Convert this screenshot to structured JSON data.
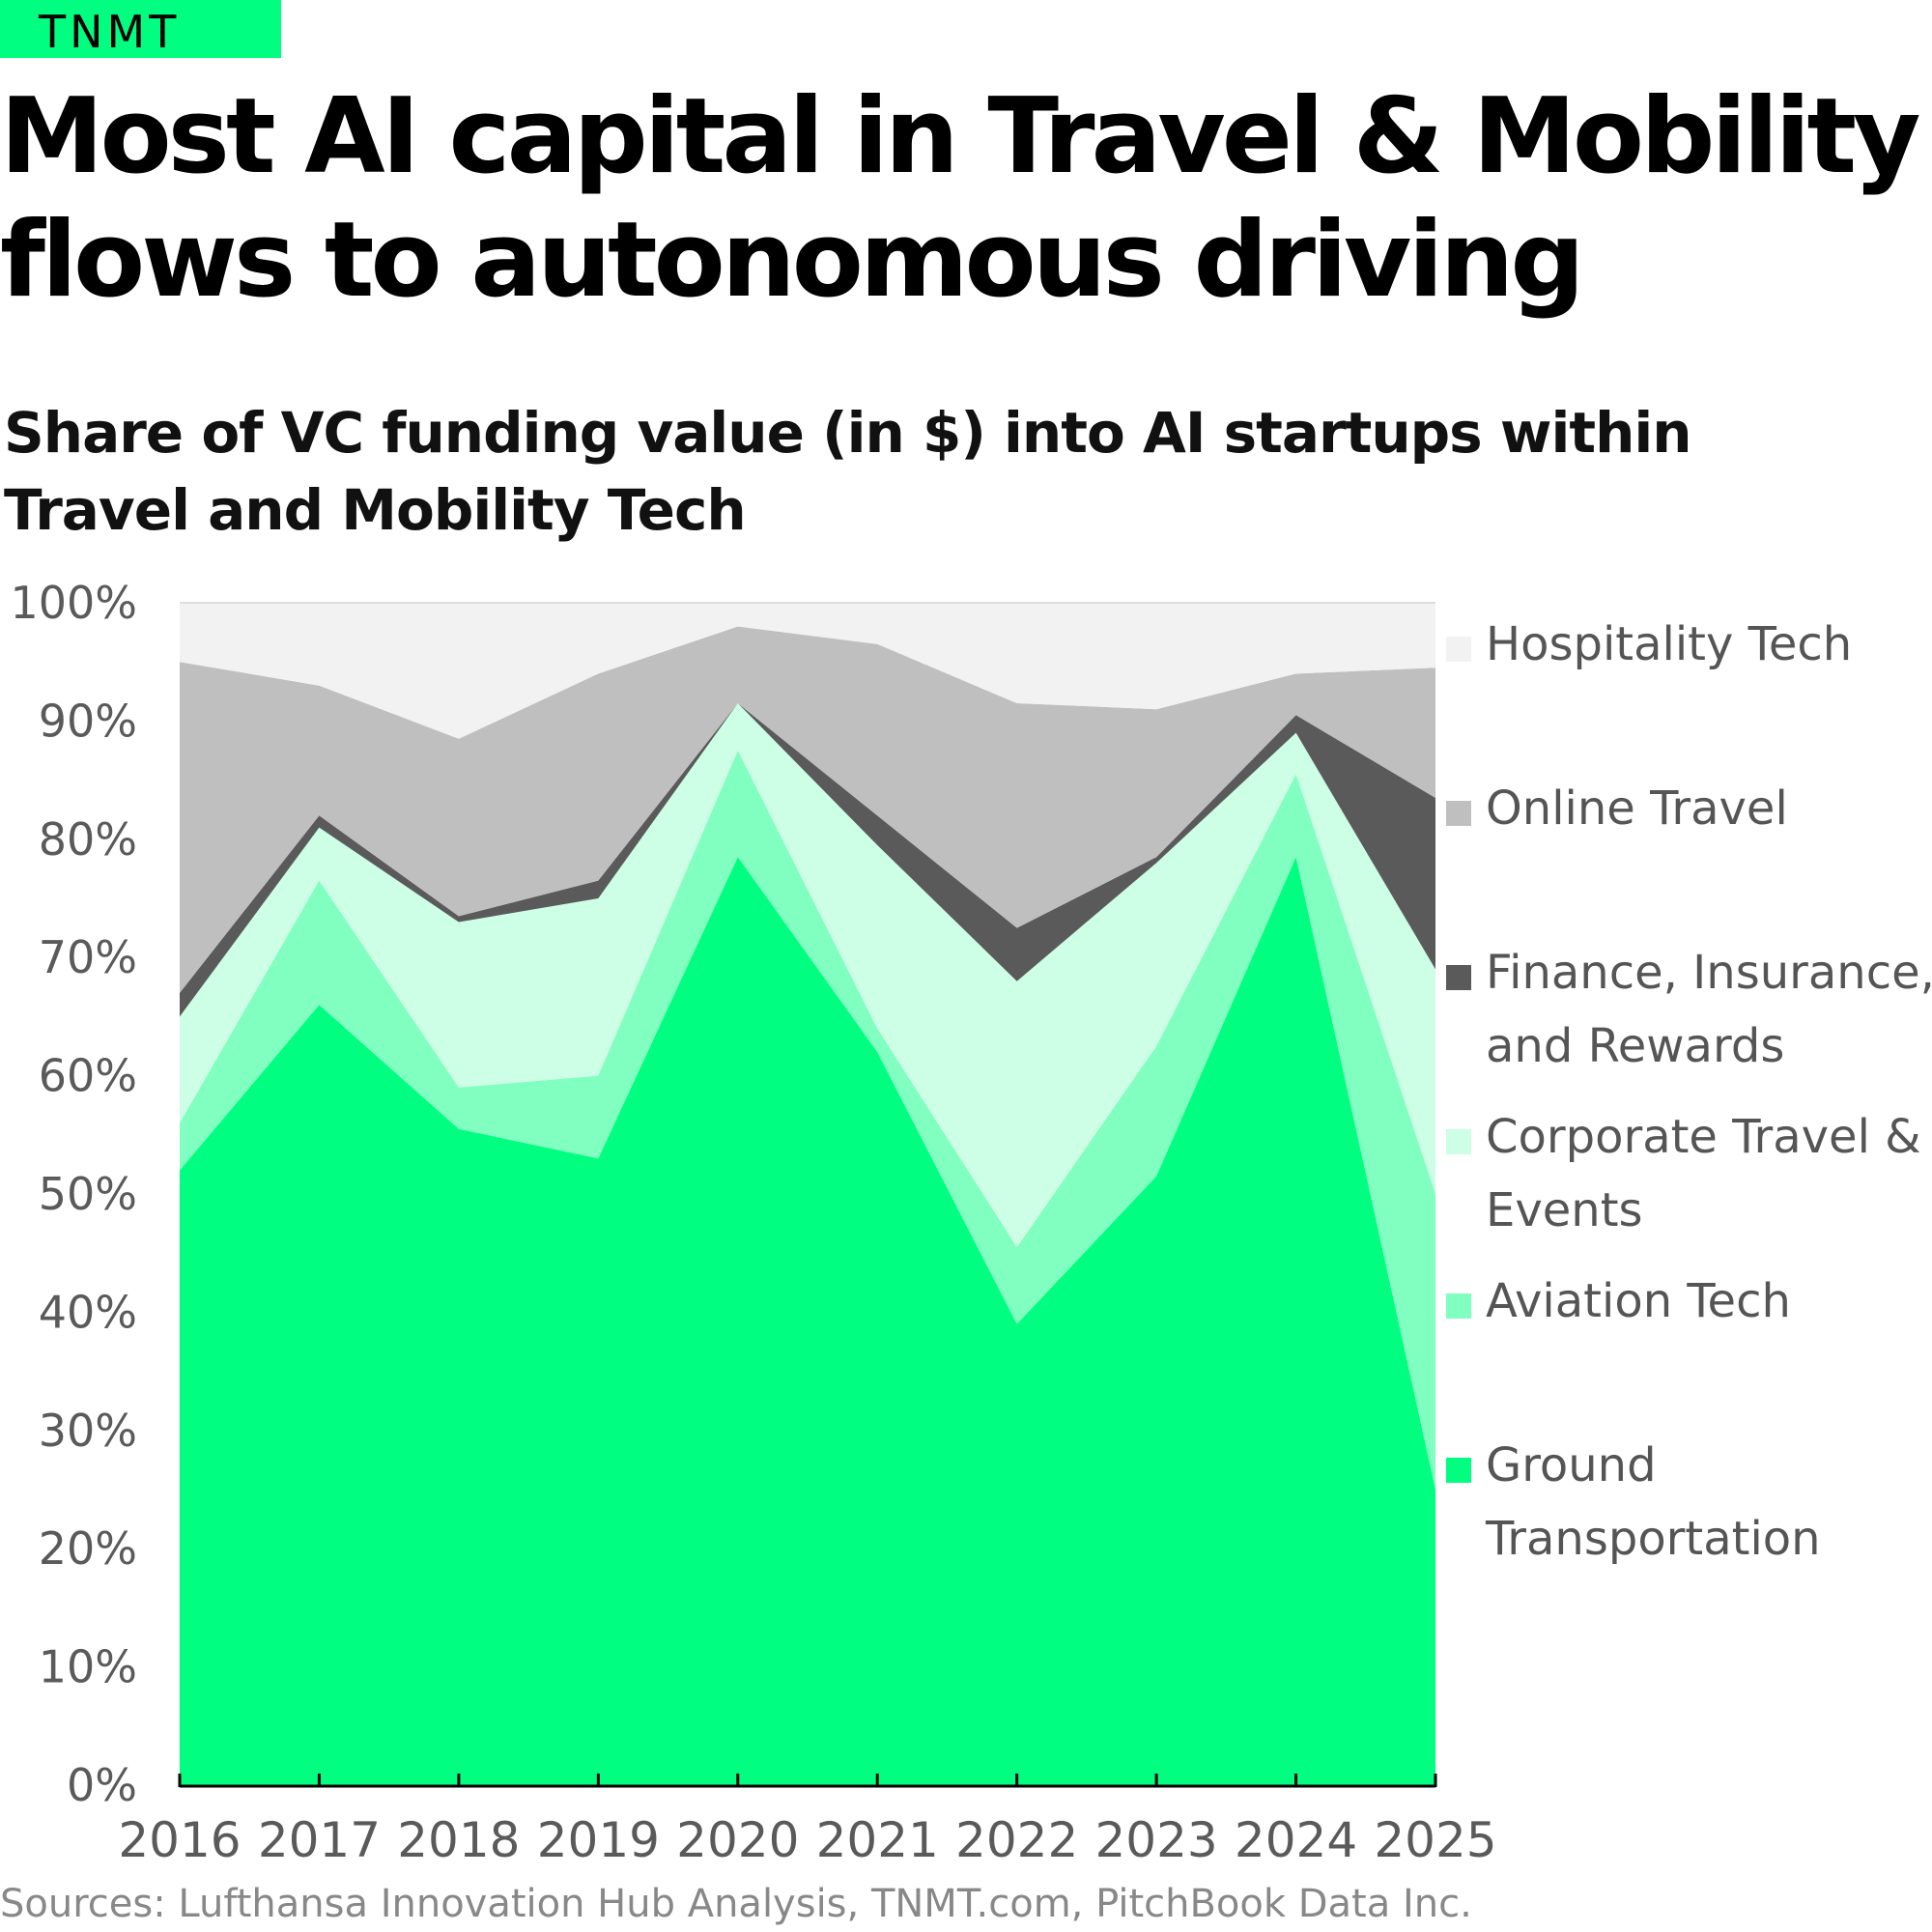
{
  "brand": {
    "logo_text": "TNMT",
    "color": "#00ff80"
  },
  "header": {
    "title_line1": "Most AI capital in Travel & Mobility",
    "title_line2": "flows to autonomous driving"
  },
  "chart_data": {
    "type": "area",
    "stacked": true,
    "normalized": true,
    "title": "Share of VC funding value (in $) into AI startups within Travel and Mobility Tech",
    "subtitle_line1": "Share of VC funding value (in $) into AI startups within",
    "subtitle_line2": "Travel and Mobility Tech",
    "xlabel": "",
    "ylabel": "",
    "ylim": [
      0,
      100
    ],
    "y_ticks": [
      "0%",
      "10%",
      "20%",
      "30%",
      "40%",
      "50%",
      "60%",
      "70%",
      "80%",
      "90%",
      "100%"
    ],
    "categories": [
      "2016",
      "2017",
      "2018",
      "2019",
      "2020",
      "2021",
      "2022",
      "2023",
      "2024",
      "2025"
    ],
    "legend_position": "right",
    "series": [
      {
        "name": "Ground Transportation",
        "legend_line1": "Ground",
        "legend_line2": "Transportation",
        "color": "#00ff80",
        "values": [
          52,
          66,
          55.5,
          53,
          78.5,
          62,
          39,
          51.5,
          78.5,
          25
        ]
      },
      {
        "name": "Aviation Tech",
        "legend_line1": "Aviation Tech",
        "legend_line2": "",
        "color": "#80ffc0",
        "values": [
          4,
          10.5,
          3.5,
          7,
          9,
          2,
          6.5,
          11,
          7,
          25
        ]
      },
      {
        "name": "Corporate Travel & Events",
        "legend_line1": "Corporate Travel &",
        "legend_line2": "Events",
        "color": "#ccffe5",
        "values": [
          9,
          4.5,
          14,
          15,
          4,
          15.5,
          22.5,
          15.5,
          3.5,
          19
        ]
      },
      {
        "name": "Finance, Insurance, and Rewards",
        "legend_line1": "Finance, Insurance,",
        "legend_line2": "and Rewards",
        "color": "#5a5a5a",
        "values": [
          2,
          1,
          0.5,
          1.5,
          0,
          2.5,
          4.5,
          0.5,
          1.5,
          14.5
        ]
      },
      {
        "name": "Online Travel",
        "legend_line1": "Online Travel",
        "legend_line2": "",
        "color": "#bfbfbf",
        "values": [
          28,
          11,
          15,
          17.5,
          6.5,
          14.5,
          19,
          12.5,
          3.5,
          11
        ]
      },
      {
        "name": "Hospitality Tech",
        "legend_line1": "Hospitality Tech",
        "legend_line2": "",
        "color": "#f2f2f2",
        "values": [
          5,
          7,
          11.5,
          6,
          2,
          3.5,
          8.5,
          9,
          6,
          5.5
        ]
      }
    ]
  },
  "footer": {
    "source": "Sources: Lufthansa Innovation Hub Analysis, TNMT.com, PitchBook Data Inc."
  }
}
